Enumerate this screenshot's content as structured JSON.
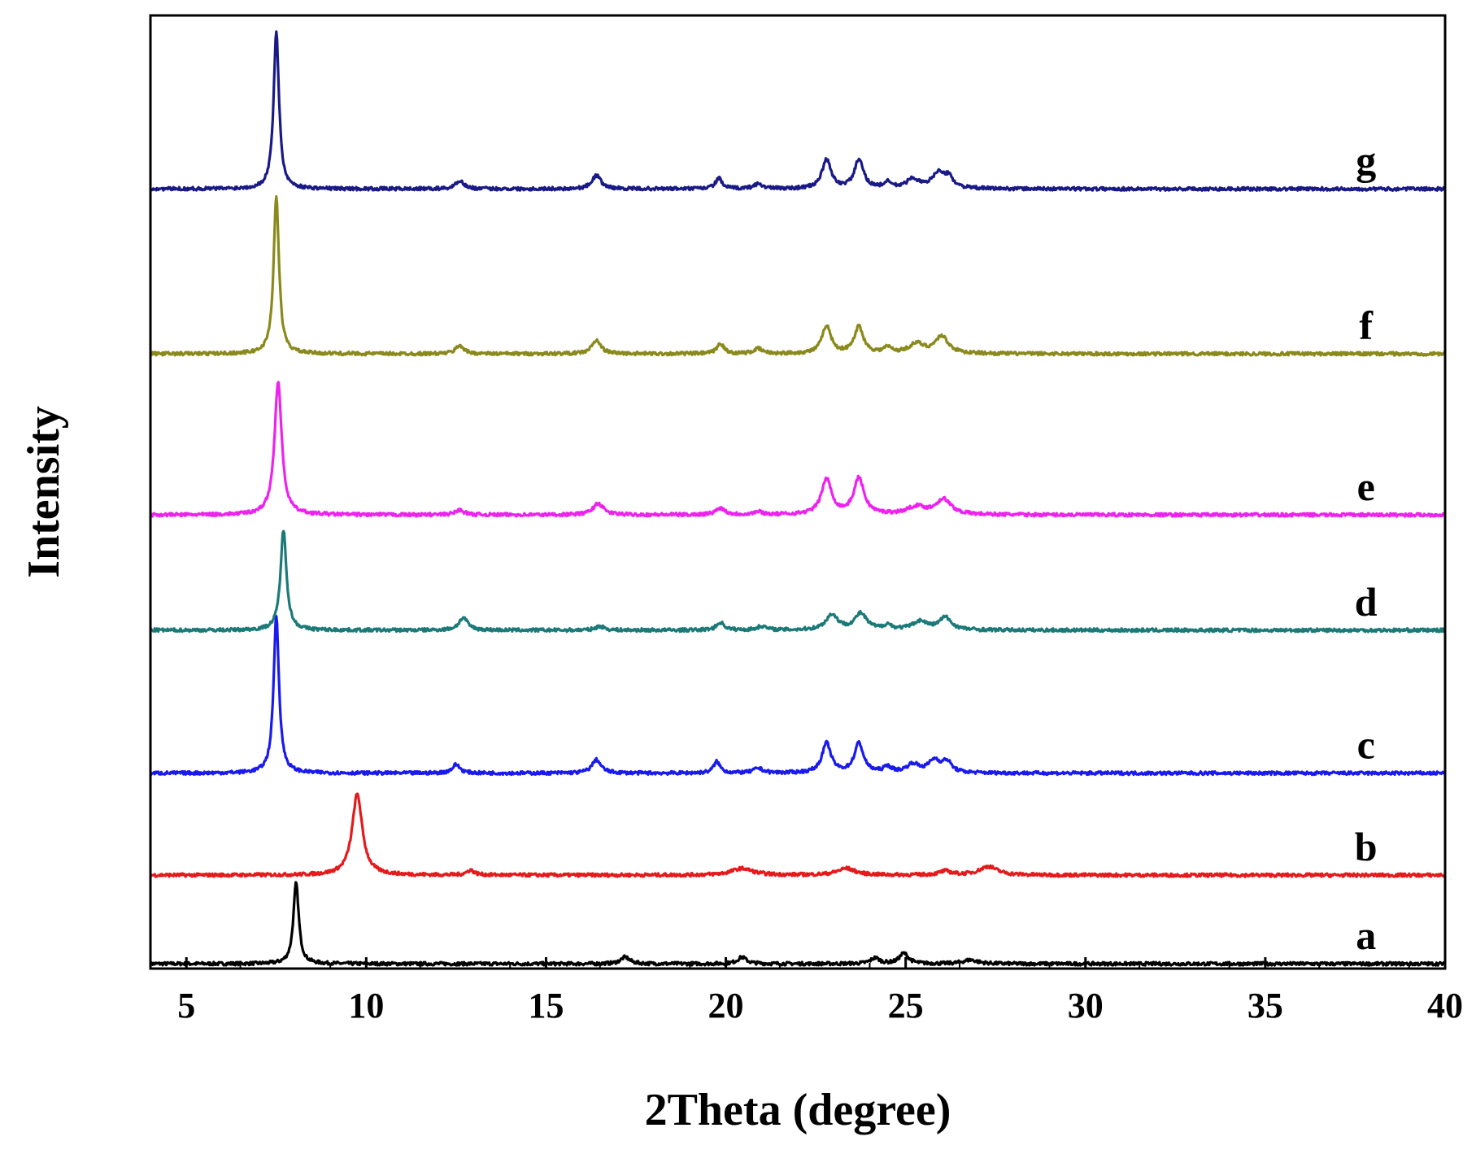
{
  "chart_data": {
    "type": "line",
    "title": "",
    "xlabel": "2Theta (degree)",
    "ylabel": "Intensity",
    "xlim": [
      4,
      40
    ],
    "ylim": [
      0,
      1
    ],
    "x_ticks": [
      5,
      10,
      15,
      20,
      25,
      30,
      35,
      40
    ],
    "y_ticks_shown": false,
    "grid": false,
    "legend": "none",
    "series": [
      {
        "name": "a",
        "color": "#000000",
        "baseline": 0.005,
        "label_x": 37.8,
        "peaks": [
          [
            8.05,
            0.085,
            0.09
          ],
          [
            17.2,
            0.007,
            0.15
          ],
          [
            20.45,
            0.007,
            0.15
          ],
          [
            24.15,
            0.006,
            0.15
          ],
          [
            24.95,
            0.011,
            0.15
          ],
          [
            26.8,
            0.004,
            0.25
          ]
        ]
      },
      {
        "name": "b",
        "color": "#e41a1c",
        "baseline": 0.098,
        "label_x": 37.8,
        "peaks": [
          [
            9.75,
            0.085,
            0.17
          ],
          [
            12.9,
            0.005,
            0.13
          ],
          [
            20.45,
            0.007,
            0.35
          ],
          [
            23.35,
            0.007,
            0.3
          ],
          [
            26.1,
            0.004,
            0.2
          ],
          [
            27.3,
            0.009,
            0.3
          ]
        ]
      },
      {
        "name": "c",
        "color": "#1a1aee",
        "baseline": 0.205,
        "label_x": 37.8,
        "peaks": [
          [
            7.5,
            0.165,
            0.09
          ],
          [
            12.5,
            0.009,
            0.13
          ],
          [
            16.4,
            0.014,
            0.15
          ],
          [
            19.75,
            0.012,
            0.11
          ],
          [
            20.9,
            0.005,
            0.15
          ],
          [
            22.8,
            0.031,
            0.15
          ],
          [
            23.7,
            0.031,
            0.15
          ],
          [
            24.5,
            0.006,
            0.13
          ],
          [
            25.2,
            0.009,
            0.2
          ],
          [
            25.8,
            0.013,
            0.2
          ],
          [
            26.15,
            0.011,
            0.15
          ]
        ]
      },
      {
        "name": "d",
        "color": "#1b7a78",
        "baseline": 0.355,
        "label_x": 37.8,
        "peaks": [
          [
            7.7,
            0.105,
            0.1
          ],
          [
            12.7,
            0.013,
            0.15
          ],
          [
            16.5,
            0.004,
            0.15
          ],
          [
            19.85,
            0.008,
            0.13
          ],
          [
            21.0,
            0.004,
            0.15
          ],
          [
            22.95,
            0.016,
            0.2
          ],
          [
            23.75,
            0.017,
            0.2
          ],
          [
            24.5,
            0.005,
            0.13
          ],
          [
            25.4,
            0.009,
            0.25
          ],
          [
            26.1,
            0.013,
            0.2
          ]
        ]
      },
      {
        "name": "e",
        "color": "#ee22ee",
        "baseline": 0.476,
        "label_x": 37.8,
        "peaks": [
          [
            7.55,
            0.14,
            0.12
          ],
          [
            12.6,
            0.005,
            0.15
          ],
          [
            16.45,
            0.012,
            0.17
          ],
          [
            19.85,
            0.007,
            0.15
          ],
          [
            20.9,
            0.003,
            0.15
          ],
          [
            22.8,
            0.037,
            0.17
          ],
          [
            23.7,
            0.038,
            0.17
          ],
          [
            25.3,
            0.008,
            0.3
          ],
          [
            26.05,
            0.016,
            0.25
          ]
        ]
      },
      {
        "name": "f",
        "color": "#8a8a1c",
        "baseline": 0.645,
        "label_x": 37.8,
        "peaks": [
          [
            7.5,
            0.165,
            0.09
          ],
          [
            12.6,
            0.009,
            0.13
          ],
          [
            16.4,
            0.014,
            0.15
          ],
          [
            19.85,
            0.011,
            0.11
          ],
          [
            20.9,
            0.005,
            0.15
          ],
          [
            22.8,
            0.029,
            0.15
          ],
          [
            23.7,
            0.028,
            0.15
          ],
          [
            24.5,
            0.006,
            0.13
          ],
          [
            25.3,
            0.01,
            0.25
          ],
          [
            26.0,
            0.018,
            0.22
          ]
        ]
      },
      {
        "name": "g",
        "color": "#1a1a86",
        "baseline": 0.818,
        "label_x": 37.8,
        "peaks": [
          [
            7.5,
            0.165,
            0.09
          ],
          [
            12.6,
            0.009,
            0.13
          ],
          [
            16.4,
            0.014,
            0.15
          ],
          [
            19.8,
            0.011,
            0.11
          ],
          [
            20.9,
            0.005,
            0.15
          ],
          [
            22.8,
            0.03,
            0.15
          ],
          [
            23.7,
            0.03,
            0.15
          ],
          [
            24.5,
            0.006,
            0.13
          ],
          [
            25.2,
            0.01,
            0.2
          ],
          [
            25.9,
            0.016,
            0.2
          ],
          [
            26.2,
            0.011,
            0.15
          ]
        ]
      }
    ]
  }
}
